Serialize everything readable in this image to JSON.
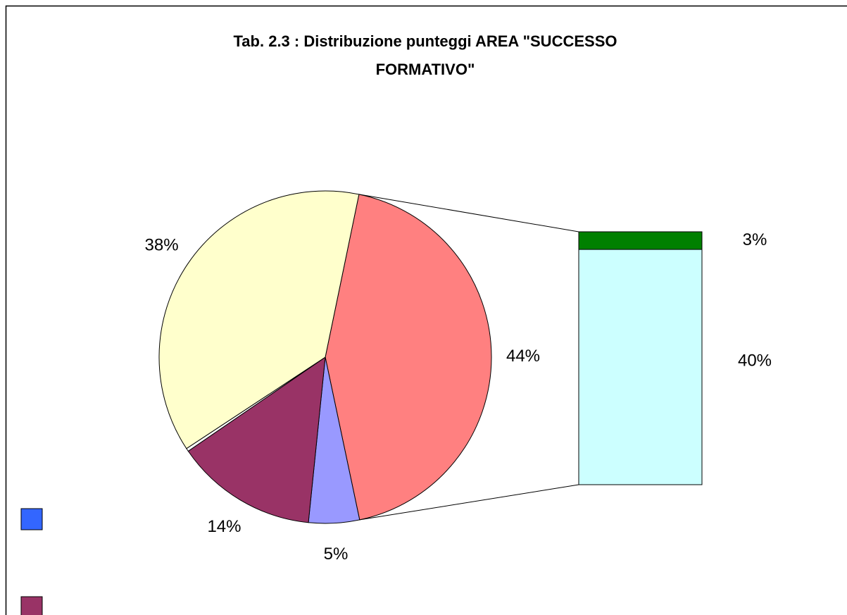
{
  "chart_data": {
    "type": "bar-of-pie",
    "title": "Tab. 2.3 : Distribuzione punteggi AREA \"SUCCESSO FORMATIVO\"",
    "pie": {
      "values": [
        44,
        5,
        14,
        0.3,
        38
      ],
      "value_labels": [
        "44%",
        "5%",
        "14%",
        null,
        "38%"
      ],
      "colors": [
        "#FF8080",
        "#9999FF",
        "#993366",
        "#FFFFFF",
        "#FFFFCC"
      ]
    },
    "bar": {
      "values": [
        40,
        3
      ],
      "value_labels": [
        "40%",
        "3%"
      ],
      "colors": [
        "#CCFFFF",
        "#008000"
      ]
    },
    "legend": [
      {
        "color": "#3366FF"
      },
      {
        "color": "#993366"
      }
    ]
  }
}
